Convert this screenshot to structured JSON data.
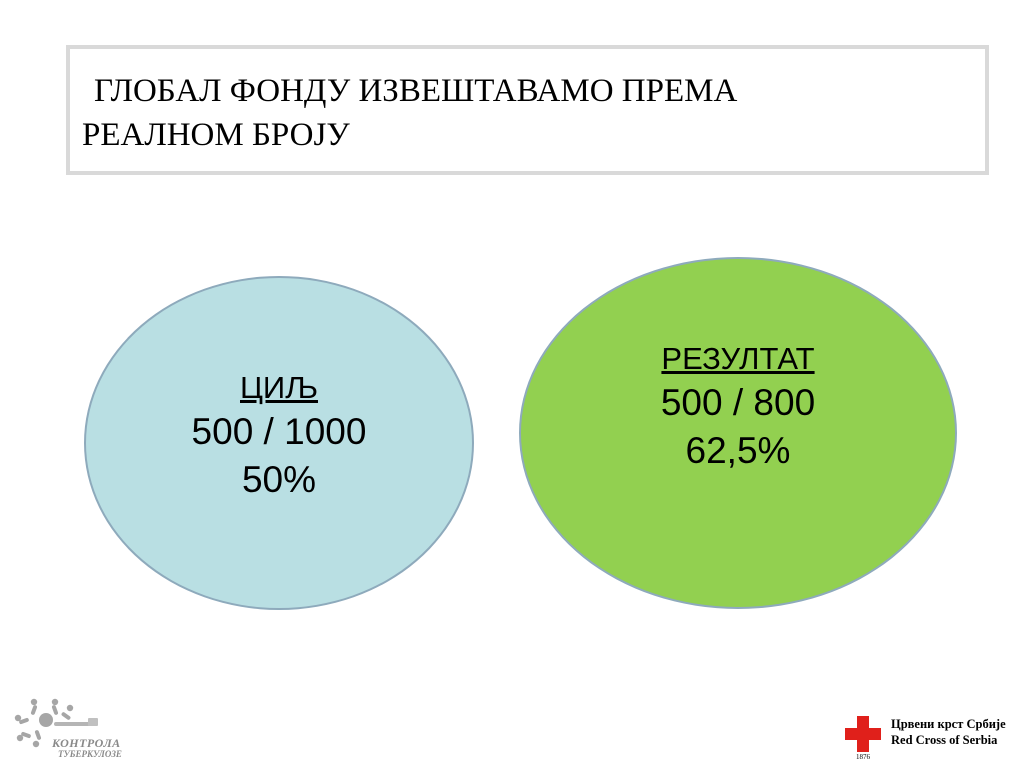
{
  "title": {
    "line1": "ГЛОБАЛ ФОНДУ ИЗВЕШТАВАМО ПРЕМА",
    "line2": "РЕАЛНОМ БРОЈУ"
  },
  "goal": {
    "heading": "ЦИЉ",
    "ratio": "500 / 1000",
    "percent": "50%",
    "color": "#b9dfe3"
  },
  "result": {
    "heading": "РЕЗУЛТАТ",
    "ratio": "500 / 800",
    "percent": "62,5%",
    "color": "#92d050"
  },
  "logo_left": {
    "line1": "КОНТРОЛА",
    "line2": "ТУБЕРКУЛОЗЕ"
  },
  "logo_right": {
    "line1": "Црвени крст Србије",
    "line2": "Red Cross of Serbia",
    "year": "1876",
    "cross_color": "#e0201b"
  }
}
